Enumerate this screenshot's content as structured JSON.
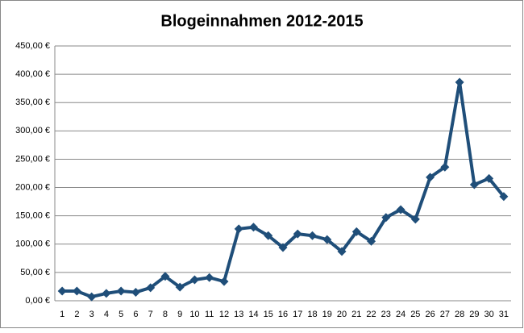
{
  "chart_data": {
    "type": "line",
    "title": "Blogeinnahmen 2012-2015",
    "categories": [
      "1",
      "2",
      "3",
      "4",
      "5",
      "6",
      "7",
      "8",
      "9",
      "10",
      "11",
      "12",
      "13",
      "14",
      "15",
      "16",
      "17",
      "18",
      "19",
      "20",
      "21",
      "22",
      "23",
      "24",
      "25",
      "26",
      "27",
      "28",
      "29",
      "30",
      "31"
    ],
    "series": [
      {
        "color": "#1f4e79",
        "values": [
          17,
          17,
          7,
          13,
          17,
          15,
          23,
          43,
          24,
          37,
          41,
          34,
          127,
          130,
          115,
          94,
          118,
          115,
          108,
          87,
          122,
          105,
          147,
          161,
          144,
          218,
          236,
          386,
          205,
          216,
          184
        ]
      }
    ],
    "ylim": [
      0,
      450
    ],
    "yticks": [
      {
        "value": 0,
        "label": "0,00 €"
      },
      {
        "value": 50,
        "label": "50,00 €"
      },
      {
        "value": 100,
        "label": "100,00 €"
      },
      {
        "value": 150,
        "label": "150,00 €"
      },
      {
        "value": 200,
        "label": "200,00 €"
      },
      {
        "value": 250,
        "label": "250,00 €"
      },
      {
        "value": 300,
        "label": "300,00 €"
      },
      {
        "value": 350,
        "label": "350,00 €"
      },
      {
        "value": 400,
        "label": "400,00 €"
      },
      {
        "value": 450,
        "label": "450,00 €"
      }
    ],
    "grid": true
  }
}
